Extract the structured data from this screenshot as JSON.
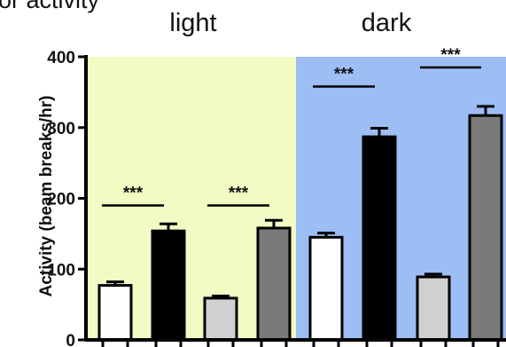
{
  "cut_text": "or activity",
  "chart_data": {
    "type": "bar",
    "title": "",
    "xlabel": "",
    "ylabel": "Activity (beam breaks/hr)",
    "ylim": [
      0,
      400
    ],
    "yticks": [
      0,
      100,
      200,
      300,
      400
    ],
    "grid": false,
    "legend": "none",
    "phases": [
      {
        "label": "light",
        "bg": "#f4fac4"
      },
      {
        "label": "dark",
        "bg": "#9dbdf5"
      }
    ],
    "bars": [
      {
        "phase": 0,
        "value": 77,
        "error": 5,
        "fill": "#ffffff"
      },
      {
        "phase": 0,
        "value": 154,
        "error": 10,
        "fill": "#000000"
      },
      {
        "phase": 0,
        "value": 59,
        "error": 3,
        "fill": "#d0d0d0"
      },
      {
        "phase": 0,
        "value": 158,
        "error": 11,
        "fill": "#7a7a7a"
      },
      {
        "phase": 1,
        "value": 145,
        "error": 6,
        "fill": "#ffffff"
      },
      {
        "phase": 1,
        "value": 287,
        "error": 12,
        "fill": "#000000"
      },
      {
        "phase": 1,
        "value": 89,
        "error": 4,
        "fill": "#d0d0d0"
      },
      {
        "phase": 1,
        "value": 317,
        "error": 13,
        "fill": "#7a7a7a"
      }
    ],
    "annotations": [
      {
        "text": "***",
        "from_bar": 0,
        "to_bar": 1,
        "y": 190
      },
      {
        "text": "***",
        "from_bar": 2,
        "to_bar": 3,
        "y": 190
      },
      {
        "text": "***",
        "from_bar": 4,
        "to_bar": 5,
        "y": 358
      },
      {
        "text": "***",
        "from_bar": 6,
        "to_bar": 7,
        "y": 385
      }
    ]
  }
}
